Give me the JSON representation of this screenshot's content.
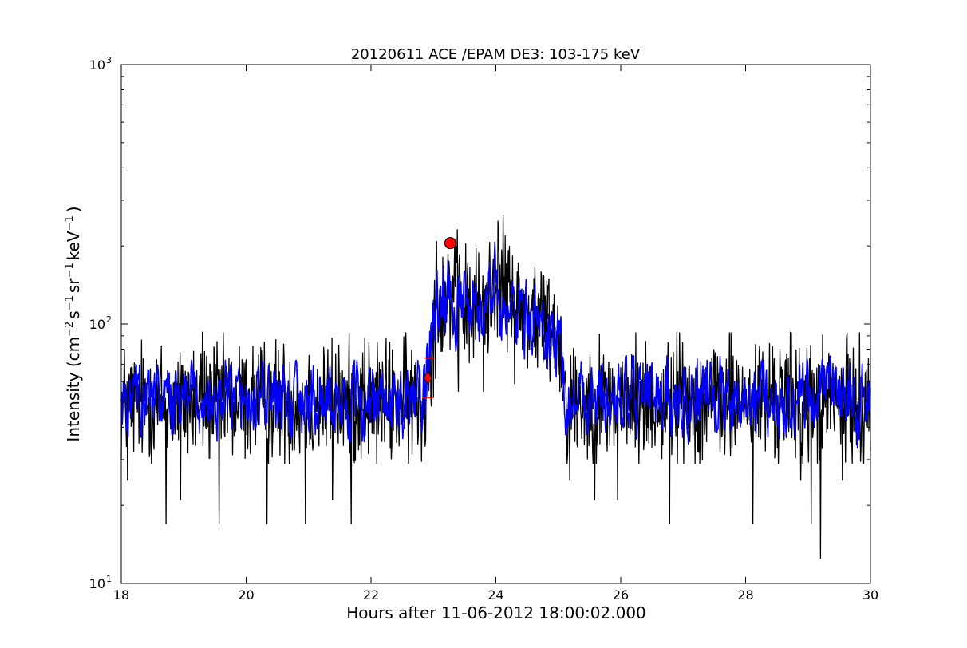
{
  "chart_data": {
    "type": "line",
    "title": "20120611 ACE /EPAM DE3: 103-175 keV",
    "xlabel": "Hours after 11-06-2012 18:00:02.000",
    "ylabel": {
      "prefix": "Intensity (cm",
      "sup1": "−2",
      "mid1": "s",
      "sup2": "−1",
      "mid2": "sr",
      "sup3": "−1",
      "mid3": "keV",
      "sup4": "−1",
      "suffix": ")"
    },
    "xlim": [
      18,
      30
    ],
    "ylim": [
      10,
      1000
    ],
    "yscale": "log",
    "grid": false,
    "x_ticks": [
      18,
      20,
      22,
      24,
      26,
      28,
      30
    ],
    "x_tick_labels": [
      "18",
      "20",
      "22",
      "24",
      "26",
      "28",
      "30"
    ],
    "y_ticks": [
      {
        "value": 10,
        "base": "10",
        "exp": "1"
      },
      {
        "value": 100,
        "base": "10",
        "exp": "2"
      },
      {
        "value": 1000,
        "base": "10",
        "exp": "3"
      }
    ],
    "series": [
      {
        "color": "#000000",
        "style": "noisy-raw",
        "profile": [
          [
            18.0,
            50
          ],
          [
            22.85,
            50
          ],
          [
            22.95,
            85
          ],
          [
            23.05,
            115
          ],
          [
            23.25,
            135
          ],
          [
            23.6,
            110
          ],
          [
            23.9,
            125
          ],
          [
            24.0,
            160
          ],
          [
            24.3,
            118
          ],
          [
            24.7,
            105
          ],
          [
            24.95,
            95
          ],
          [
            25.05,
            80
          ],
          [
            25.12,
            50
          ],
          [
            30.0,
            50
          ]
        ],
        "spikes": [
          [
            18.1,
            25
          ],
          [
            18.72,
            17
          ],
          [
            18.95,
            21
          ],
          [
            19.3,
            93
          ],
          [
            19.57,
            17
          ],
          [
            20.33,
            17
          ],
          [
            20.95,
            17
          ],
          [
            21.38,
            21
          ],
          [
            21.68,
            17
          ],
          [
            21.9,
            88
          ],
          [
            23.05,
            208
          ],
          [
            23.4,
            55
          ],
          [
            23.8,
            55
          ],
          [
            25.18,
            25
          ],
          [
            25.58,
            21
          ],
          [
            25.95,
            21
          ],
          [
            26.78,
            17
          ],
          [
            26.9,
            93
          ],
          [
            27.55,
            75
          ],
          [
            28.12,
            17
          ],
          [
            28.55,
            80
          ],
          [
            28.72,
            93
          ],
          [
            28.88,
            25
          ],
          [
            29.05,
            17
          ],
          [
            29.2,
            12.5
          ],
          [
            29.35,
            75
          ],
          [
            29.55,
            25
          ]
        ]
      },
      {
        "color": "#0000ff",
        "style": "smoothed",
        "profile": [
          [
            18.0,
            50
          ],
          [
            22.85,
            50
          ],
          [
            22.95,
            82
          ],
          [
            23.05,
            110
          ],
          [
            23.2,
            130
          ],
          [
            23.6,
            105
          ],
          [
            23.9,
            120
          ],
          [
            24.0,
            165
          ],
          [
            24.05,
            110
          ],
          [
            24.3,
            115
          ],
          [
            24.7,
            100
          ],
          [
            25.05,
            78
          ],
          [
            25.12,
            52
          ],
          [
            30.0,
            52
          ]
        ]
      }
    ],
    "markers": [
      {
        "shape": "circle",
        "x": 23.27,
        "y": 205,
        "color": "#ff0000"
      },
      {
        "shape": "diamond",
        "x": 22.91,
        "y": 62,
        "color": "#ff0000"
      },
      {
        "shape": "tick",
        "x": 22.93,
        "y": 74,
        "color": "#ff0000"
      },
      {
        "shape": "tick",
        "x": 22.91,
        "y": 52,
        "color": "#ff0000"
      }
    ]
  }
}
